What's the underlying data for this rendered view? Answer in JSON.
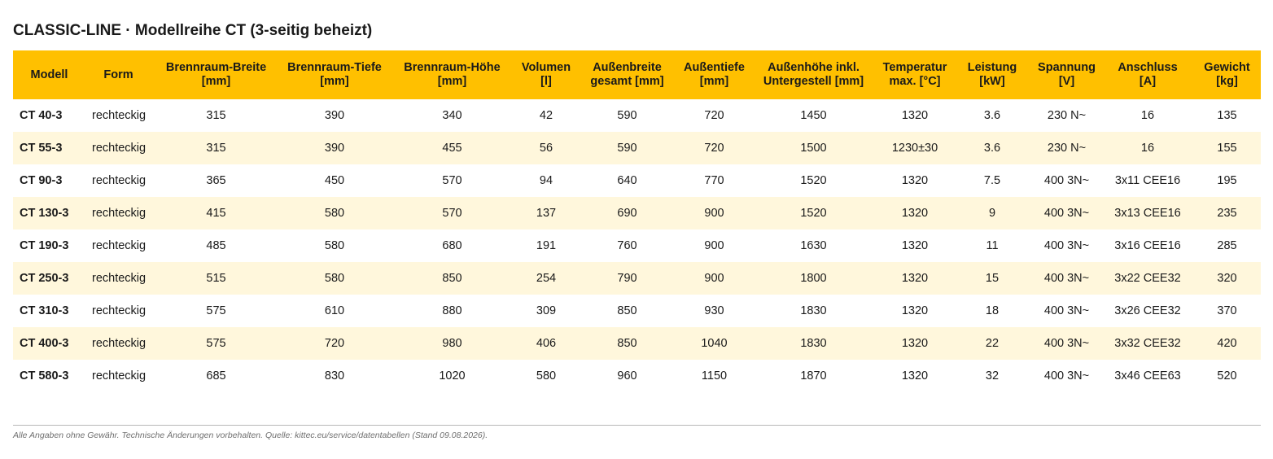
{
  "title": "CLASSIC-LINE · Modellreihe CT (3-seitig beheizt)",
  "columns": [
    {
      "l1": "Modell",
      "l2": ""
    },
    {
      "l1": "Form",
      "l2": ""
    },
    {
      "l1": "Brennraum-Breite",
      "l2": "[mm]"
    },
    {
      "l1": "Brennraum-Tiefe",
      "l2": "[mm]"
    },
    {
      "l1": "Brennraum-Höhe",
      "l2": "[mm]"
    },
    {
      "l1": "Volumen",
      "l2": "[l]"
    },
    {
      "l1": "Außenbreite",
      "l2": "gesamt [mm]"
    },
    {
      "l1": "Außentiefe",
      "l2": "[mm]"
    },
    {
      "l1": "Außenhöhe inkl.",
      "l2": "Untergestell [mm]"
    },
    {
      "l1": "Temperatur",
      "l2": "max. [°C]"
    },
    {
      "l1": "Leistung",
      "l2": "[kW]"
    },
    {
      "l1": "Spannung",
      "l2": "[V]"
    },
    {
      "l1": "Anschluss",
      "l2": "[A]"
    },
    {
      "l1": "Gewicht",
      "l2": "[kg]"
    }
  ],
  "rows": [
    [
      "CT 40-3",
      "rechteckig",
      "315",
      "390",
      "340",
      "42",
      "590",
      "720",
      "1450",
      "1320",
      "3.6",
      "230 N~",
      "16",
      "135"
    ],
    [
      "CT 55-3",
      "rechteckig",
      "315",
      "390",
      "455",
      "56",
      "590",
      "720",
      "1500",
      "1230±30",
      "3.6",
      "230 N~",
      "16",
      "155"
    ],
    [
      "CT 90-3",
      "rechteckig",
      "365",
      "450",
      "570",
      "94",
      "640",
      "770",
      "1520",
      "1320",
      "7.5",
      "400 3N~",
      "3x11 CEE16",
      "195"
    ],
    [
      "CT 130-3",
      "rechteckig",
      "415",
      "580",
      "570",
      "137",
      "690",
      "900",
      "1520",
      "1320",
      "9",
      "400 3N~",
      "3x13 CEE16",
      "235"
    ],
    [
      "CT 190-3",
      "rechteckig",
      "485",
      "580",
      "680",
      "191",
      "760",
      "900",
      "1630",
      "1320",
      "11",
      "400 3N~",
      "3x16 CEE16",
      "285"
    ],
    [
      "CT 250-3",
      "rechteckig",
      "515",
      "580",
      "850",
      "254",
      "790",
      "900",
      "1800",
      "1320",
      "15",
      "400 3N~",
      "3x22 CEE32",
      "320"
    ],
    [
      "CT 310-3",
      "rechteckig",
      "575",
      "610",
      "880",
      "309",
      "850",
      "930",
      "1830",
      "1320",
      "18",
      "400 3N~",
      "3x26 CEE32",
      "370"
    ],
    [
      "CT 400-3",
      "rechteckig",
      "575",
      "720",
      "980",
      "406",
      "850",
      "1040",
      "1830",
      "1320",
      "22",
      "400 3N~",
      "3x32 CEE32",
      "420"
    ],
    [
      "CT 580-3",
      "rechteckig",
      "685",
      "830",
      "1020",
      "580",
      "960",
      "1150",
      "1870",
      "1320",
      "32",
      "400 3N~",
      "3x46 CEE63",
      "520"
    ]
  ],
  "footnote": "Alle Angaben ohne Gewähr. Technische Änderungen vorbehalten. Quelle: kittec.eu/service/datentabellen (Stand 09.08.2026).",
  "colors": {
    "header_bg": "#ffc000",
    "stripe_bg": "#fff7dc",
    "rule": "#b8b8b8"
  }
}
